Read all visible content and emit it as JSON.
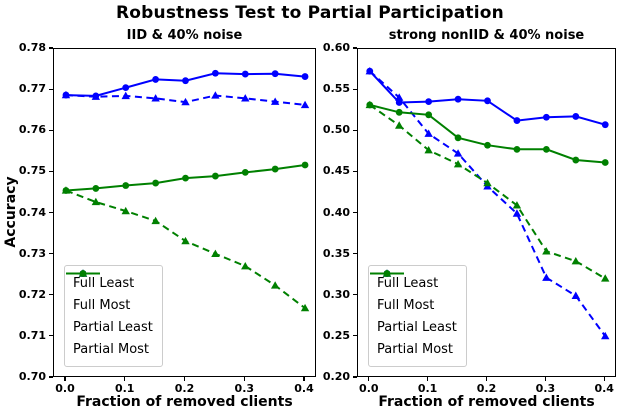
{
  "figure": {
    "title": "Robustness Test to Partial Participation"
  },
  "colors": {
    "blue": "#0000ff",
    "green": "#008000",
    "axis": "#000000",
    "legend_border": "#cccccc",
    "background": "#ffffff"
  },
  "chart_data": [
    {
      "type": "line",
      "title": "IID & 40% noise",
      "xlabel": "Fraction of removed clients",
      "ylabel": "Accuracy",
      "x": [
        0.0,
        0.05,
        0.1,
        0.15,
        0.2,
        0.25,
        0.3,
        0.35,
        0.4
      ],
      "xlim": [
        -0.02,
        0.42
      ],
      "ylim": [
        0.7,
        0.78
      ],
      "xticks": [
        "0.0",
        "0.1",
        "0.2",
        "0.3",
        "0.4"
      ],
      "yticks": [
        "0.70",
        "0.71",
        "0.72",
        "0.73",
        "0.74",
        "0.75",
        "0.76",
        "0.77",
        "0.78"
      ],
      "grid": false,
      "legend_position": "lower left",
      "series": [
        {
          "name": "Full Least",
          "color": "blue",
          "line": "solid",
          "marker": "circle",
          "values": [
            0.7688,
            0.7686,
            0.7706,
            0.7726,
            0.7723,
            0.7741,
            0.7739,
            0.774,
            0.7733
          ]
        },
        {
          "name": "Full Most",
          "color": "blue",
          "line": "dashed",
          "marker": "triangle",
          "values": [
            0.7688,
            0.7684,
            0.7686,
            0.768,
            0.7671,
            0.7687,
            0.768,
            0.7672,
            0.7664
          ]
        },
        {
          "name": "Partial Least",
          "color": "green",
          "line": "solid",
          "marker": "circle",
          "values": [
            0.7456,
            0.7461,
            0.7468,
            0.7474,
            0.7486,
            0.7491,
            0.75,
            0.7508,
            0.7518
          ]
        },
        {
          "name": "Partial Most",
          "color": "green",
          "line": "dashed",
          "marker": "triangle",
          "values": [
            0.7456,
            0.7428,
            0.7406,
            0.7382,
            0.7333,
            0.7302,
            0.7272,
            0.7225,
            0.717
          ]
        }
      ]
    },
    {
      "type": "line",
      "title": "strong nonIID & 40% noise",
      "xlabel": "Fraction of removed clients",
      "ylabel": "",
      "x": [
        0.0,
        0.05,
        0.1,
        0.15,
        0.2,
        0.25,
        0.3,
        0.35,
        0.4
      ],
      "xlim": [
        -0.02,
        0.42
      ],
      "ylim": [
        0.2,
        0.6
      ],
      "xticks": [
        "0.0",
        "0.1",
        "0.2",
        "0.3",
        "0.4"
      ],
      "yticks": [
        "0.20",
        "0.25",
        "0.30",
        "0.35",
        "0.40",
        "0.45",
        "0.50",
        "0.55",
        "0.60"
      ],
      "grid": false,
      "legend_position": "lower left",
      "series": [
        {
          "name": "Full Least",
          "color": "blue",
          "line": "solid",
          "marker": "circle",
          "values": [
            0.573,
            0.535,
            0.536,
            0.539,
            0.537,
            0.513,
            0.517,
            0.518,
            0.508
          ]
        },
        {
          "name": "Full Most",
          "color": "blue",
          "line": "dashed",
          "marker": "triangle",
          "values": [
            0.573,
            0.541,
            0.497,
            0.473,
            0.433,
            0.4,
            0.322,
            0.3,
            0.251
          ]
        },
        {
          "name": "Partial Least",
          "color": "green",
          "line": "solid",
          "marker": "circle",
          "values": [
            0.532,
            0.523,
            0.52,
            0.492,
            0.483,
            0.478,
            0.478,
            0.465,
            0.462
          ]
        },
        {
          "name": "Partial Most",
          "color": "green",
          "line": "dashed",
          "marker": "triangle",
          "values": [
            0.532,
            0.507,
            0.477,
            0.46,
            0.437,
            0.41,
            0.354,
            0.342,
            0.321
          ]
        }
      ]
    }
  ]
}
